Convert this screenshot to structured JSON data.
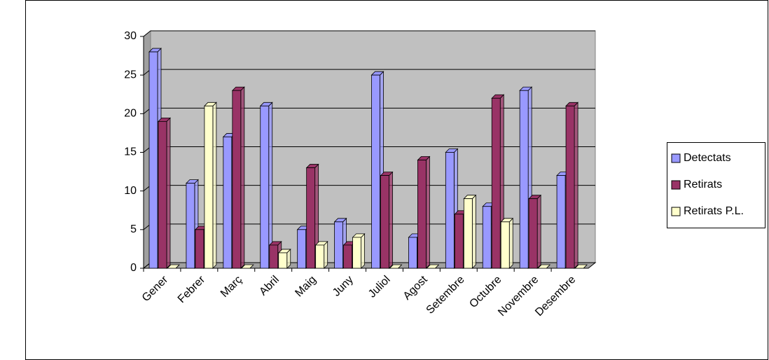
{
  "chart_data": {
    "type": "bar",
    "categories": [
      "Gener",
      "Febrer",
      "Març",
      "Abril",
      "Maig",
      "Juny",
      "Juliol",
      "Agost",
      "Setembre",
      "Octubre",
      "Novembre",
      "Desembre"
    ],
    "series": [
      {
        "name": "Detectats",
        "color": "#9999ff",
        "values": [
          28,
          11,
          17,
          21,
          5,
          6,
          25,
          4,
          15,
          8,
          23,
          12
        ]
      },
      {
        "name": "Retirats",
        "color": "#993366",
        "values": [
          19,
          5,
          23,
          3,
          13,
          3,
          12,
          14,
          7,
          22,
          9,
          21
        ]
      },
      {
        "name": "Retirats P.L.",
        "color": "#ffffcc",
        "values": [
          0,
          21,
          0,
          2,
          3,
          4,
          0,
          0,
          9,
          6,
          0,
          0
        ]
      }
    ],
    "ylim": [
      0,
      30
    ],
    "yticks": [
      0,
      5,
      10,
      15,
      20,
      25,
      30
    ],
    "grid": true,
    "legend": "right"
  }
}
